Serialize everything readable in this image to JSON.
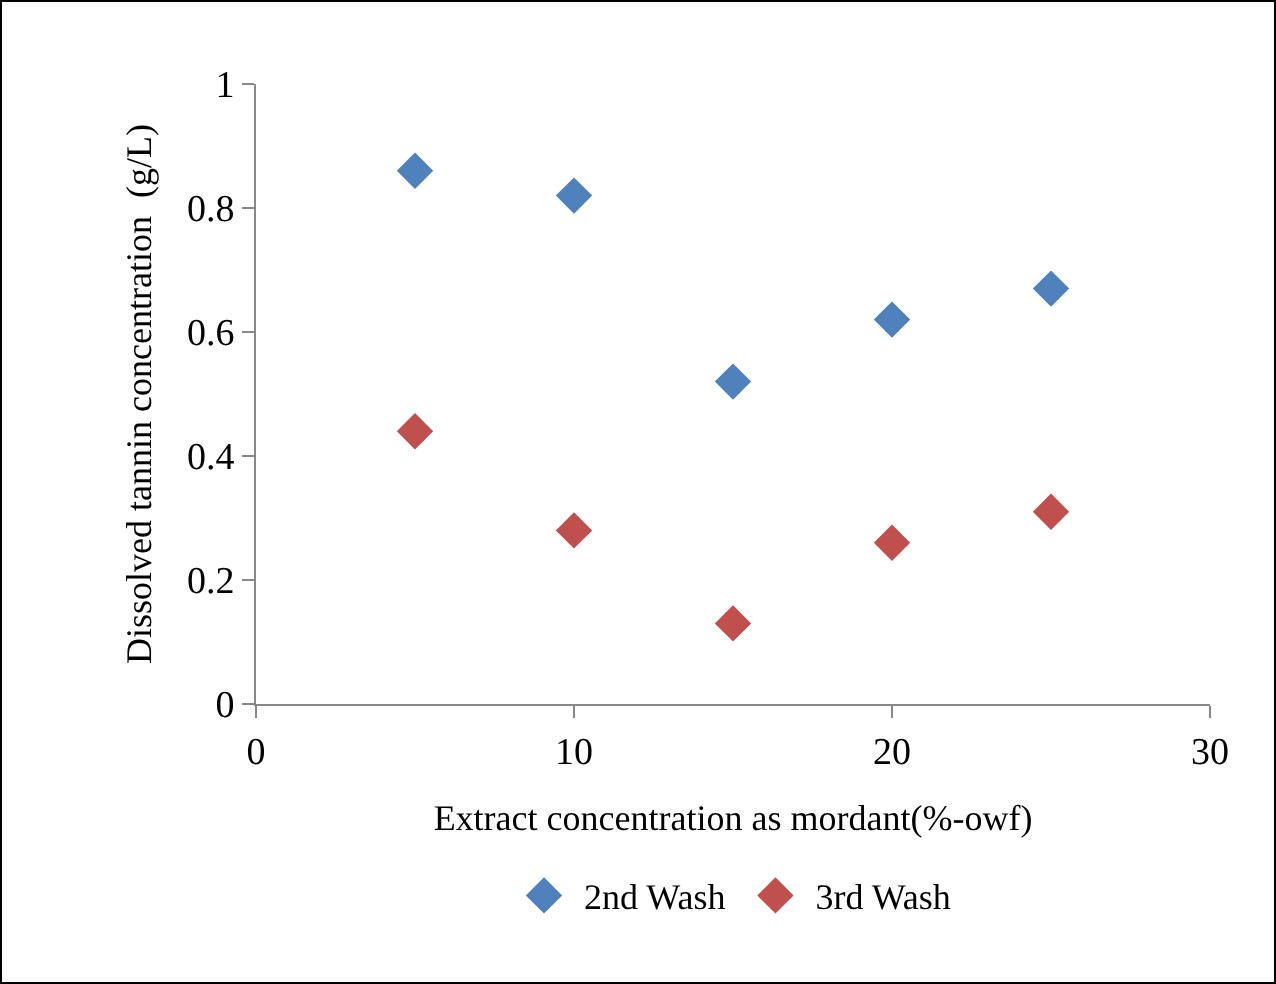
{
  "chart_data": {
    "type": "scatter",
    "xlabel": "Extract concentration as mordant(%-owf)",
    "ylabel": "Dissolved tannin concentration  (g/L)",
    "x": [
      5,
      10,
      15,
      20,
      25
    ],
    "series": [
      {
        "name": "2nd Wash",
        "color": "#4f81bd",
        "values": [
          0.86,
          0.82,
          0.52,
          0.62,
          0.67
        ]
      },
      {
        "name": "3rd Wash",
        "color": "#c0504d",
        "values": [
          0.44,
          0.28,
          0.13,
          0.26,
          0.31
        ]
      }
    ],
    "xlim": [
      0,
      30
    ],
    "xticks": [
      0,
      10,
      20,
      30
    ],
    "ylim": [
      0,
      1
    ],
    "yticks": [
      0,
      0.2,
      0.4,
      0.6,
      0.8,
      1
    ],
    "grid": false,
    "legend": "bottom",
    "marker": "diamond"
  }
}
